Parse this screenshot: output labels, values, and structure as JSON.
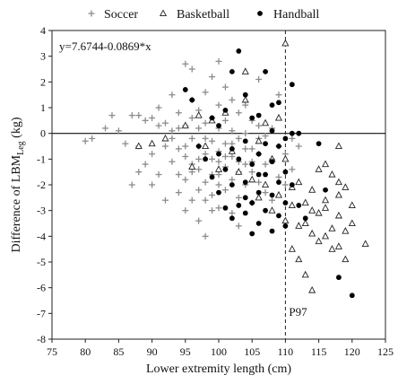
{
  "chart_data": {
    "type": "scatter",
    "title": "",
    "xlabel": "Lower extremity length (cm)",
    "ylabel_main": "Difference of LBM",
    "ylabel_sub": "Leg",
    "ylabel_unit": " (kg)",
    "xlim": [
      75,
      125
    ],
    "ylim": [
      -8,
      4
    ],
    "x_ticks": [
      75,
      80,
      85,
      90,
      95,
      100,
      105,
      110,
      115,
      120,
      125
    ],
    "y_ticks": [
      4,
      3,
      2,
      1,
      0,
      -1,
      -2,
      -3,
      -4,
      -5,
      -6,
      -7,
      -8
    ],
    "grid": false,
    "legend_placement": "top",
    "zero_line": 0,
    "reference_line": {
      "x": 110,
      "label": "P97"
    },
    "equation": "y=7.6744-0.0869*x",
    "series": [
      {
        "name": "Soccer",
        "marker": "plus",
        "color": "#8c8c8c",
        "points": [
          [
            80,
            -0.3
          ],
          [
            81,
            -0.2
          ],
          [
            83,
            0.2
          ],
          [
            84,
            0.7
          ],
          [
            85,
            0.1
          ],
          [
            86,
            -0.4
          ],
          [
            87,
            0.7
          ],
          [
            87,
            -2.0
          ],
          [
            88,
            0.7
          ],
          [
            88,
            -0.5
          ],
          [
            88,
            -1.5
          ],
          [
            89,
            0.5
          ],
          [
            89,
            -1.2
          ],
          [
            90,
            0.6
          ],
          [
            90,
            -0.8
          ],
          [
            90,
            -2.0
          ],
          [
            91,
            0.3
          ],
          [
            91,
            -1.6
          ],
          [
            91,
            1.0
          ],
          [
            92,
            0.4
          ],
          [
            92,
            -0.5
          ],
          [
            92,
            -2.6
          ],
          [
            93,
            0.1
          ],
          [
            93,
            1.5
          ],
          [
            93,
            -1.1
          ],
          [
            94,
            -0.6
          ],
          [
            94,
            0.8
          ],
          [
            94,
            -1.6
          ],
          [
            94,
            -2.3
          ],
          [
            95,
            2.7
          ],
          [
            95,
            0.3
          ],
          [
            95,
            -0.5
          ],
          [
            95,
            -1.8
          ],
          [
            95,
            -3.0
          ],
          [
            96,
            1.3
          ],
          [
            96,
            2.5
          ],
          [
            96,
            -0.2
          ],
          [
            96,
            -1.2
          ],
          [
            96,
            -2.6
          ],
          [
            97,
            0.9
          ],
          [
            97,
            -0.5
          ],
          [
            97,
            -1.4
          ],
          [
            97,
            -2.2
          ],
          [
            97,
            -3.4
          ],
          [
            98,
            1.6
          ],
          [
            98,
            0.4
          ],
          [
            98,
            -0.8
          ],
          [
            98,
            -1.9
          ],
          [
            98,
            -4.0
          ],
          [
            99,
            2.2
          ],
          [
            99,
            0.6
          ],
          [
            99,
            -0.3
          ],
          [
            99,
            -1.0
          ],
          [
            99,
            -2.4
          ],
          [
            100,
            2.8
          ],
          [
            100,
            1.1
          ],
          [
            100,
            0.2
          ],
          [
            100,
            -0.7
          ],
          [
            100,
            -1.6
          ],
          [
            100,
            -2.9
          ],
          [
            101,
            1.8
          ],
          [
            101,
            0.5
          ],
          [
            101,
            -0.4
          ],
          [
            101,
            -1.3
          ],
          [
            101,
            -2.2
          ],
          [
            102,
            1.3
          ],
          [
            102,
            0.1
          ],
          [
            102,
            -0.9
          ],
          [
            102,
            -1.8
          ],
          [
            102,
            -3.1
          ],
          [
            103,
            0.8
          ],
          [
            103,
            -0.2
          ],
          [
            103,
            -1.1
          ],
          [
            103,
            -2.5
          ],
          [
            103,
            -3.6
          ],
          [
            104,
            1.1
          ],
          [
            104,
            0.0
          ],
          [
            104,
            -1.2
          ],
          [
            104,
            -2.0
          ],
          [
            105,
            0.5
          ],
          [
            105,
            -0.6
          ],
          [
            105,
            -1.5
          ],
          [
            105,
            -2.7
          ],
          [
            106,
            0.3
          ],
          [
            106,
            -0.8
          ],
          [
            106,
            -1.9
          ],
          [
            106,
            2.1
          ],
          [
            107,
            -0.1
          ],
          [
            107,
            -1.2
          ],
          [
            107,
            -2.3
          ],
          [
            108,
            0.2
          ],
          [
            108,
            -1.0
          ],
          [
            108,
            -2.6
          ],
          [
            109,
            -0.5
          ],
          [
            109,
            -1.7
          ],
          [
            109,
            1.5
          ],
          [
            110,
            -0.8
          ],
          [
            110,
            -2.0
          ],
          [
            111,
            -0.2
          ],
          [
            111,
            -1.4
          ],
          [
            112,
            -0.5
          ],
          [
            93,
            -0.2
          ],
          [
            94,
            0.2
          ],
          [
            95,
            -0.9
          ],
          [
            96,
            0.6
          ],
          [
            97,
            0.2
          ],
          [
            98,
            -0.2
          ],
          [
            99,
            -1.6
          ],
          [
            100,
            -1.1
          ],
          [
            101,
            -0.9
          ],
          [
            102,
            -0.4
          ],
          [
            103,
            -1.5
          ],
          [
            104,
            -0.6
          ],
          [
            105,
            -1.1
          ],
          [
            106,
            -0.2
          ],
          [
            96,
            -1.5
          ],
          [
            97,
            -1.0
          ],
          [
            98,
            -2.6
          ],
          [
            99,
            -3.0
          ],
          [
            100,
            -2.0
          ]
        ]
      },
      {
        "name": "Basketball",
        "marker": "triangle",
        "color": "#222222",
        "points": [
          [
            88,
            -0.5
          ],
          [
            90,
            -0.4
          ],
          [
            92,
            -0.2
          ],
          [
            95,
            0.3
          ],
          [
            96,
            -1.3
          ],
          [
            97,
            0.7
          ],
          [
            98,
            -0.5
          ],
          [
            99,
            0.5
          ],
          [
            100,
            -1.4
          ],
          [
            101,
            0.8
          ],
          [
            102,
            -0.7
          ],
          [
            103,
            -1.5
          ],
          [
            104,
            2.4
          ],
          [
            104,
            1.3
          ],
          [
            105,
            -1.8
          ],
          [
            106,
            -0.3
          ],
          [
            106,
            -2.5
          ],
          [
            107,
            0.4
          ],
          [
            107,
            -2.0
          ],
          [
            108,
            -1.0
          ],
          [
            108,
            -3.0
          ],
          [
            109,
            -2.4
          ],
          [
            109,
            0.6
          ],
          [
            110,
            3.5
          ],
          [
            110,
            -1.0
          ],
          [
            110,
            -3.4
          ],
          [
            111,
            -4.5
          ],
          [
            111,
            -2.8
          ],
          [
            112,
            -1.9
          ],
          [
            112,
            -3.6
          ],
          [
            112,
            -4.9
          ],
          [
            113,
            -3.5
          ],
          [
            113,
            -2.7
          ],
          [
            113,
            -5.5
          ],
          [
            114,
            -3.0
          ],
          [
            114,
            -6.1
          ],
          [
            114,
            -2.2
          ],
          [
            115,
            -3.1
          ],
          [
            115,
            -4.2
          ],
          [
            115,
            -1.4
          ],
          [
            116,
            -2.6
          ],
          [
            116,
            -4.0
          ],
          [
            116,
            -2.9
          ],
          [
            117,
            -3.7
          ],
          [
            117,
            -1.6
          ],
          [
            117,
            -4.5
          ],
          [
            118,
            -0.5
          ],
          [
            118,
            -2.4
          ],
          [
            118,
            -3.2
          ],
          [
            118,
            -1.9
          ],
          [
            119,
            -4.9
          ],
          [
            119,
            -2.1
          ],
          [
            119,
            -3.8
          ],
          [
            120,
            -2.8
          ],
          [
            120,
            -3.5
          ],
          [
            122,
            -4.3
          ],
          [
            111,
            -2.1
          ],
          [
            114,
            -3.9
          ],
          [
            116,
            -1.2
          ],
          [
            118,
            -4.4
          ]
        ]
      },
      {
        "name": "Handball",
        "marker": "circle",
        "color": "#000000",
        "points": [
          [
            95,
            1.7
          ],
          [
            96,
            1.3
          ],
          [
            97,
            -0.5
          ],
          [
            98,
            -1.0
          ],
          [
            99,
            0.6
          ],
          [
            99,
            -1.7
          ],
          [
            100,
            0.3
          ],
          [
            100,
            -2.3
          ],
          [
            101,
            0.9
          ],
          [
            101,
            -1.4
          ],
          [
            102,
            -0.6
          ],
          [
            102,
            -2.0
          ],
          [
            102,
            2.4
          ],
          [
            103,
            -1.0
          ],
          [
            103,
            -2.8
          ],
          [
            103,
            3.2
          ],
          [
            104,
            -0.3
          ],
          [
            104,
            -1.9
          ],
          [
            104,
            -3.1
          ],
          [
            105,
            0.6
          ],
          [
            105,
            -1.2
          ],
          [
            105,
            -2.7
          ],
          [
            106,
            -0.8
          ],
          [
            106,
            -2.3
          ],
          [
            106,
            -3.5
          ],
          [
            107,
            2.4
          ],
          [
            107,
            -0.4
          ],
          [
            107,
            -1.6
          ],
          [
            107,
            -3.0
          ],
          [
            108,
            0.1
          ],
          [
            108,
            -1.1
          ],
          [
            108,
            -2.4
          ],
          [
            108,
            -3.8
          ],
          [
            109,
            -0.5
          ],
          [
            109,
            -1.9
          ],
          [
            109,
            -3.2
          ],
          [
            109,
            1.2
          ],
          [
            110,
            -0.2
          ],
          [
            110,
            -1.5
          ],
          [
            110,
            -2.7
          ],
          [
            110,
            -3.6
          ],
          [
            111,
            1.9
          ],
          [
            111,
            0.0
          ],
          [
            111,
            -2.0
          ],
          [
            112,
            -2.8
          ],
          [
            112,
            0.0
          ],
          [
            113,
            -3.3
          ],
          [
            115,
            -0.4
          ],
          [
            116,
            -2.2
          ],
          [
            118,
            -5.6
          ],
          [
            120,
            -6.3
          ],
          [
            104,
            1.5
          ],
          [
            106,
            0.7
          ],
          [
            108,
            1.1
          ],
          [
            105,
            -3.9
          ],
          [
            106,
            -1.6
          ],
          [
            104,
            -2.5
          ],
          [
            102,
            -3.3
          ],
          [
            100,
            -0.8
          ],
          [
            101,
            -2.9
          ]
        ]
      }
    ]
  }
}
